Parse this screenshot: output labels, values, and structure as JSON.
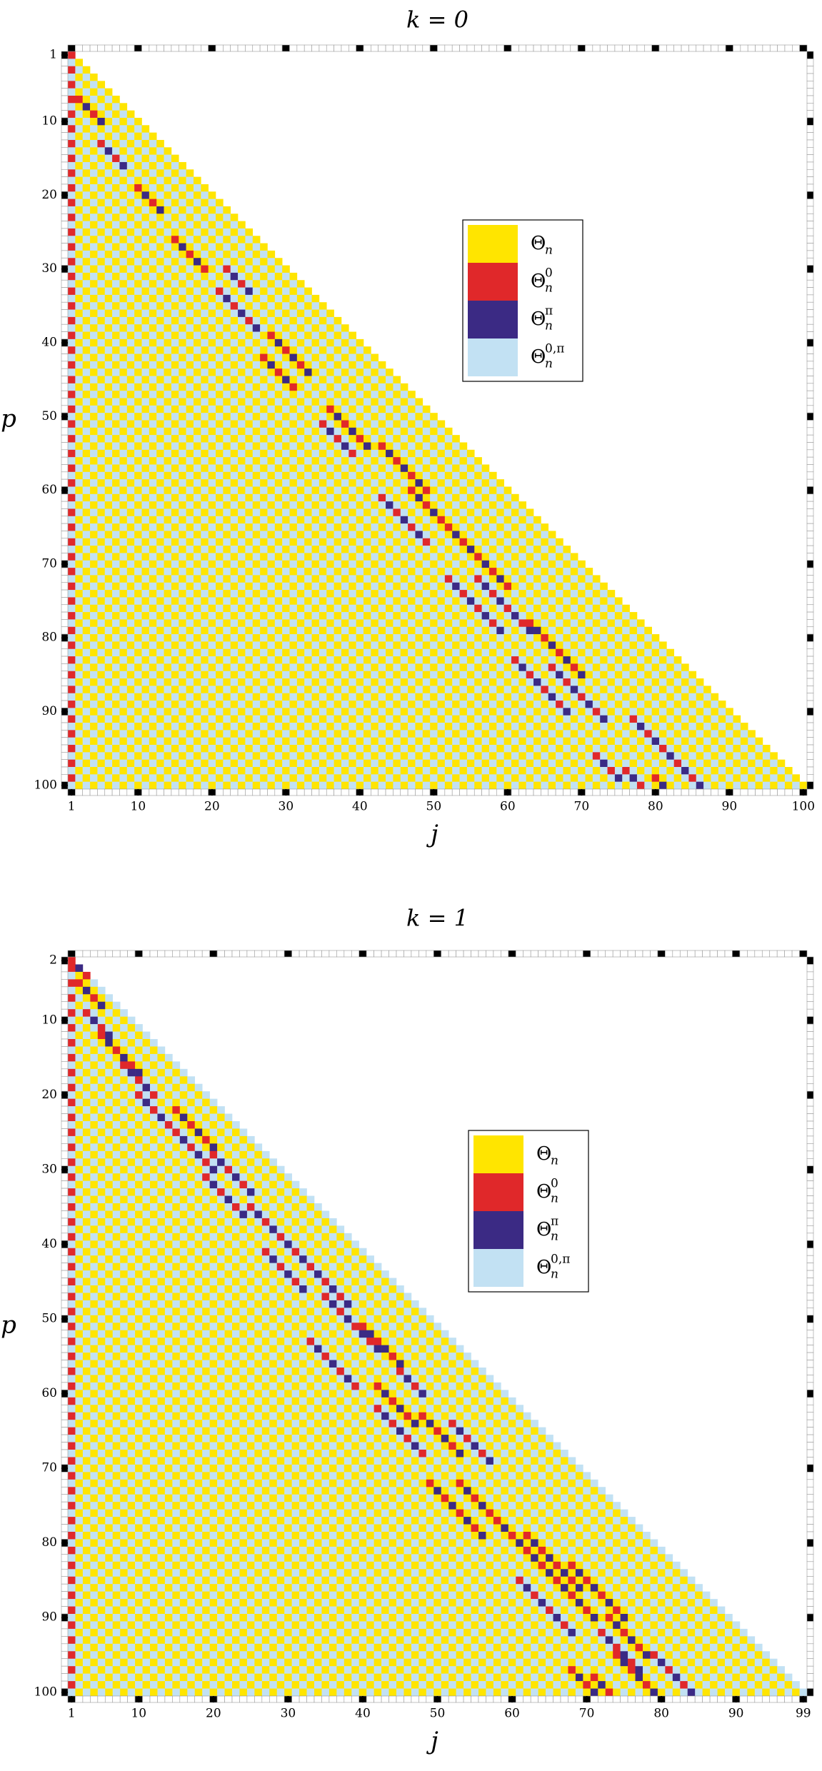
{
  "chart_data": [
    {
      "type": "heatmap",
      "title": "k = 0",
      "xlabel": "j",
      "ylabel": "p",
      "xlim": [
        1,
        100
      ],
      "ylim": [
        1,
        100
      ],
      "xticks": [
        1,
        10,
        20,
        30,
        40,
        50,
        60,
        70,
        80,
        90,
        100
      ],
      "yticks": [
        1,
        10,
        20,
        30,
        40,
        50,
        60,
        70,
        80,
        90,
        100
      ],
      "triangle_offset": 0,
      "legend": [
        {
          "name": "Θ",
          "sub": "n",
          "color": "#ffe500"
        },
        {
          "name": "Θ",
          "sub": "n",
          "sup": "0",
          "color": "#e0282a"
        },
        {
          "name": "Θ",
          "sub": "n",
          "sup": "π",
          "color": "#3b2a84"
        },
        {
          "name": "Θ",
          "sub": "n",
          "sup": "0,π",
          "color": "#c2e1f3"
        }
      ],
      "base": [
        0,
        3
      ],
      "first_column": [
        1,
        3
      ],
      "streak_colors": [
        1,
        2
      ],
      "streaks": [
        [
          7,
          2,
          4
        ],
        [
          13,
          5,
          4
        ],
        [
          19,
          10,
          4
        ],
        [
          26,
          15,
          5
        ],
        [
          30,
          22,
          4
        ],
        [
          33,
          21,
          6
        ],
        [
          39,
          28,
          6
        ],
        [
          42,
          27,
          5
        ],
        [
          49,
          36,
          6
        ],
        [
          51,
          35,
          5
        ],
        [
          54,
          43,
          7
        ],
        [
          60,
          47,
          7
        ],
        [
          61,
          43,
          7
        ],
        [
          65,
          52,
          9
        ],
        [
          72,
          52,
          8
        ],
        [
          72,
          56,
          8
        ],
        [
          78,
          63,
          8
        ],
        [
          83,
          61,
          8
        ],
        [
          84,
          66,
          8
        ],
        [
          91,
          77,
          10
        ],
        [
          96,
          72,
          4
        ],
        [
          98,
          76,
          6
        ],
        [
          99,
          80,
          7
        ]
      ]
    },
    {
      "type": "heatmap",
      "title": "k = 1",
      "xlabel": "j",
      "ylabel": "p",
      "xlim": [
        1,
        99
      ],
      "ylim": [
        2,
        100
      ],
      "xticks": [
        1,
        10,
        20,
        30,
        40,
        50,
        60,
        70,
        80,
        90,
        99
      ],
      "yticks": [
        2,
        10,
        20,
        30,
        40,
        50,
        60,
        70,
        80,
        90,
        100
      ],
      "triangle_offset": 1,
      "legend": [
        {
          "name": "Θ",
          "sub": "n",
          "color": "#ffe500"
        },
        {
          "name": "Θ",
          "sub": "n",
          "sup": "0",
          "color": "#e0282a"
        },
        {
          "name": "Θ",
          "sub": "n",
          "sup": "π",
          "color": "#3b2a84"
        },
        {
          "name": "Θ",
          "sub": "n",
          "sup": "0,π",
          "color": "#c2e1f3"
        }
      ],
      "base": [
        0,
        3
      ],
      "first_column": [
        1,
        3
      ],
      "streak_colors": [
        1,
        2
      ],
      "streaks": [
        [
          2,
          1,
          3
        ],
        [
          5,
          2,
          4
        ],
        [
          9,
          3,
          4
        ],
        [
          12,
          5,
          6
        ],
        [
          16,
          8,
          5
        ],
        [
          20,
          10,
          6
        ],
        [
          22,
          15,
          6
        ],
        [
          25,
          15,
          6
        ],
        [
          28,
          20,
          6
        ],
        [
          31,
          19,
          6
        ],
        [
          35,
          25,
          6
        ],
        [
          37,
          27,
          6
        ],
        [
          41,
          27,
          6
        ],
        [
          43,
          33,
          6
        ],
        [
          47,
          35,
          6
        ],
        [
          49,
          37,
          6
        ],
        [
          51,
          40,
          6
        ],
        [
          53,
          33,
          7
        ],
        [
          57,
          45,
          4
        ],
        [
          59,
          42,
          6
        ],
        [
          62,
          42,
          7
        ],
        [
          63,
          48,
          6
        ],
        [
          64,
          52,
          6
        ],
        [
          72,
          49,
          8
        ],
        [
          72,
          53,
          9
        ],
        [
          77,
          58,
          7
        ],
        [
          79,
          62,
          8
        ],
        [
          83,
          64,
          8
        ],
        [
          83,
          68,
          8
        ],
        [
          85,
          61,
          8
        ],
        [
          90,
          73,
          6
        ],
        [
          92,
          72,
          6
        ],
        [
          95,
          74,
          8
        ],
        [
          95,
          79,
          8
        ],
        [
          97,
          68,
          8
        ],
        [
          98,
          71,
          8
        ]
      ]
    }
  ]
}
